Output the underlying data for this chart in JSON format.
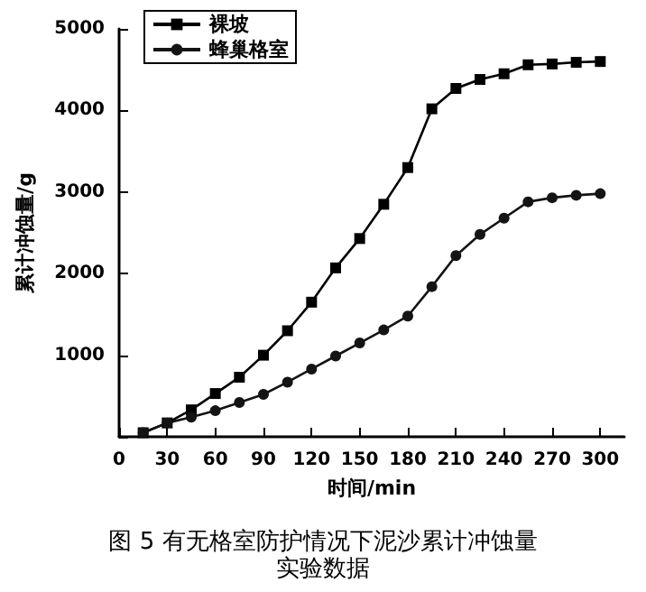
{
  "chart_data": {
    "type": "line",
    "title": "图 5 有无格室防护情况下泥沙累计冲蚀量实验数据",
    "xlabel": "时间/min",
    "ylabel": "累计冲蚀量/g",
    "x": [
      15,
      30,
      45,
      60,
      75,
      90,
      105,
      120,
      135,
      150,
      165,
      180,
      195,
      210,
      225,
      240,
      255,
      270,
      285,
      300
    ],
    "series": [
      {
        "name": "裸坡",
        "color": "#000000",
        "marker": "square",
        "values": [
          50,
          170,
          330,
          530,
          730,
          1000,
          1300,
          1650,
          2070,
          2430,
          2850,
          3300,
          4020,
          4270,
          4380,
          4450,
          4560,
          4570,
          4590,
          4600
        ]
      },
      {
        "name": "蜂巢格室",
        "color": "#141414",
        "marker": "circle",
        "values": [
          50,
          170,
          240,
          320,
          420,
          520,
          670,
          830,
          990,
          1150,
          1310,
          1480,
          1840,
          2220,
          2480,
          2680,
          2880,
          2930,
          2960,
          2980
        ]
      }
    ],
    "xlim": [
      0,
      315
    ],
    "xticks": [
      0,
      30,
      60,
      90,
      120,
      150,
      180,
      210,
      240,
      270,
      300
    ],
    "ylim": [
      0,
      5000
    ],
    "yticks": [
      {
        "value": 0,
        "label": null
      },
      1000,
      2000,
      3000,
      4000,
      5000
    ],
    "grid": false,
    "legend": "top left",
    "line_style": "solid"
  }
}
